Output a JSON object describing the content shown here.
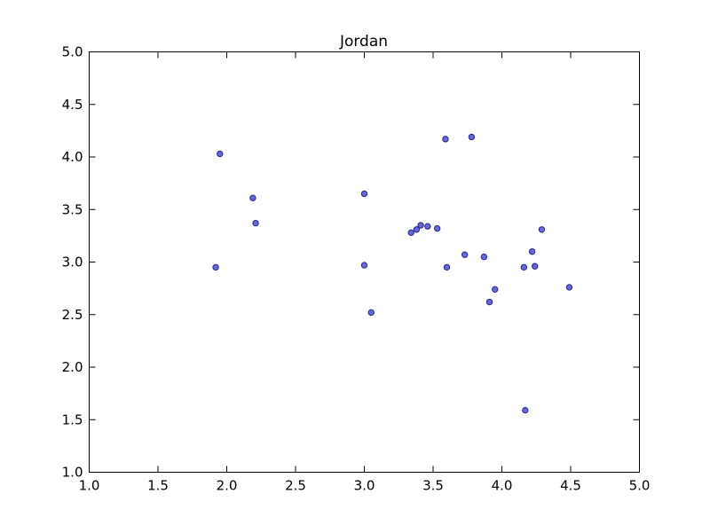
{
  "chart_data": {
    "type": "scatter",
    "title": "Jordan",
    "xlabel": "",
    "ylabel": "",
    "xlim": [
      1.0,
      5.0
    ],
    "ylim": [
      1.0,
      5.0
    ],
    "grid": false,
    "x_ticks": [
      "1.0",
      "1.5",
      "2.0",
      "2.5",
      "3.0",
      "3.5",
      "4.0",
      "4.5",
      "5.0"
    ],
    "y_ticks": [
      "1.0",
      "1.5",
      "2.0",
      "2.5",
      "3.0",
      "3.5",
      "4.0",
      "4.5",
      "5.0"
    ],
    "colors": {
      "point_fill": "#6666dd",
      "point_edge": "#2a2a80"
    },
    "points": [
      {
        "x": 1.95,
        "y": 4.03
      },
      {
        "x": 1.92,
        "y": 2.95
      },
      {
        "x": 2.19,
        "y": 3.61
      },
      {
        "x": 2.21,
        "y": 3.37
      },
      {
        "x": 3.0,
        "y": 3.65
      },
      {
        "x": 3.0,
        "y": 2.97
      },
      {
        "x": 3.05,
        "y": 2.52
      },
      {
        "x": 3.34,
        "y": 3.28
      },
      {
        "x": 3.38,
        "y": 3.31
      },
      {
        "x": 3.41,
        "y": 3.35
      },
      {
        "x": 3.46,
        "y": 3.34
      },
      {
        "x": 3.53,
        "y": 3.32
      },
      {
        "x": 3.59,
        "y": 4.17
      },
      {
        "x": 3.6,
        "y": 2.95
      },
      {
        "x": 3.73,
        "y": 3.07
      },
      {
        "x": 3.78,
        "y": 4.19
      },
      {
        "x": 3.87,
        "y": 3.05
      },
      {
        "x": 3.91,
        "y": 2.62
      },
      {
        "x": 3.95,
        "y": 2.74
      },
      {
        "x": 4.16,
        "y": 2.95
      },
      {
        "x": 4.17,
        "y": 1.59
      },
      {
        "x": 4.22,
        "y": 3.1
      },
      {
        "x": 4.24,
        "y": 2.96
      },
      {
        "x": 4.29,
        "y": 3.31
      },
      {
        "x": 4.49,
        "y": 2.76
      }
    ]
  }
}
